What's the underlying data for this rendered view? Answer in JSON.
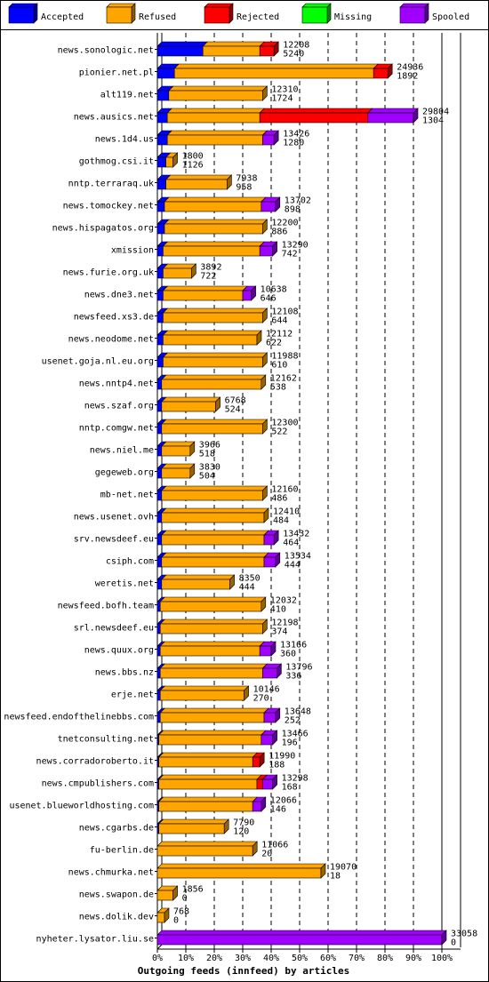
{
  "chart_data": {
    "type": "bar",
    "orientation": "horizontal",
    "stacked": true,
    "percent_stacked": true,
    "title": "Outgoing feeds (innfeed) by articles",
    "xlabel": "Outgoing feeds (innfeed) by articles",
    "xlim": [
      0,
      100
    ],
    "x_ticks": [
      "0%",
      "10%",
      "20%",
      "30%",
      "40%",
      "50%",
      "60%",
      "70%",
      "80%",
      "90%",
      "100%"
    ],
    "grid": true,
    "legend_position": "top",
    "legend": [
      {
        "name": "Accepted",
        "color": "#0000ff"
      },
      {
        "name": "Refused",
        "color": "#ffa500"
      },
      {
        "name": "Rejected",
        "color": "#ff0000"
      },
      {
        "name": "Missing",
        "color": "#00ff00"
      },
      {
        "name": "Spooled",
        "color": "#a000ff"
      }
    ],
    "series_names": [
      "Accepted",
      "Refused",
      "Rejected",
      "Missing",
      "Spooled"
    ],
    "rows": [
      {
        "label": "news.sonologic.net",
        "total": "12208",
        "accepted": "5240",
        "pct": [
          16,
          20,
          5,
          0,
          0
        ]
      },
      {
        "label": "pionier.net.pl",
        "total": "24936",
        "accepted": "1892",
        "pct": [
          6,
          70,
          5,
          0,
          0
        ]
      },
      {
        "label": "alt119.net",
        "total": "12310",
        "accepted": "1724",
        "pct": [
          4,
          33,
          0,
          0,
          0
        ]
      },
      {
        "label": "news.ausics.net",
        "total": "29804",
        "accepted": "1304",
        "pct": [
          3.5,
          32.5,
          38,
          0,
          16
        ]
      },
      {
        "label": "news.1d4.us",
        "total": "13426",
        "accepted": "1280",
        "pct": [
          3.5,
          33.5,
          0,
          0,
          4
        ]
      },
      {
        "label": "gothmog.csi.it",
        "total": "1800",
        "accepted": "1126",
        "pct": [
          3,
          2.5,
          0,
          0,
          0
        ]
      },
      {
        "label": "nntp.terraraq.uk",
        "total": "7938",
        "accepted": "958",
        "pct": [
          3,
          21.5,
          0,
          0,
          0
        ]
      },
      {
        "label": "news.tomockey.net",
        "total": "13702",
        "accepted": "898",
        "pct": [
          2.5,
          34,
          0,
          0,
          5
        ]
      },
      {
        "label": "news.hispagatos.org",
        "total": "12200",
        "accepted": "886",
        "pct": [
          2.5,
          34.5,
          0,
          0,
          0
        ]
      },
      {
        "label": "xmission",
        "total": "13290",
        "accepted": "742",
        "pct": [
          2,
          34,
          0,
          0,
          4.5
        ]
      },
      {
        "label": "news.furie.org.uk",
        "total": "3892",
        "accepted": "722",
        "pct": [
          2,
          10,
          0,
          0,
          0
        ]
      },
      {
        "label": "news.dne3.net",
        "total": "10638",
        "accepted": "646",
        "pct": [
          2,
          28,
          0,
          0,
          3
        ]
      },
      {
        "label": "newsfeed.xs3.de",
        "total": "12108",
        "accepted": "644",
        "pct": [
          2,
          35,
          0,
          0,
          0
        ]
      },
      {
        "label": "news.neodome.net",
        "total": "12112",
        "accepted": "622",
        "pct": [
          2,
          33,
          0,
          0,
          0
        ]
      },
      {
        "label": "usenet.goja.nl.eu.org",
        "total": "11988",
        "accepted": "610",
        "pct": [
          2,
          35,
          0,
          0,
          0
        ]
      },
      {
        "label": "news.nntp4.net",
        "total": "12162",
        "accepted": "538",
        "pct": [
          1.5,
          35,
          0,
          0,
          0
        ]
      },
      {
        "label": "news.szaf.org",
        "total": "6768",
        "accepted": "524",
        "pct": [
          1.5,
          19,
          0,
          0,
          0
        ]
      },
      {
        "label": "nntp.comgw.net",
        "total": "12300",
        "accepted": "522",
        "pct": [
          1.5,
          35.5,
          0,
          0,
          0
        ]
      },
      {
        "label": "news.niel.me",
        "total": "3966",
        "accepted": "518",
        "pct": [
          1.5,
          10,
          0,
          0,
          0
        ]
      },
      {
        "label": "gegeweb.org",
        "total": "3830",
        "accepted": "504",
        "pct": [
          1.5,
          10,
          0,
          0,
          0
        ]
      },
      {
        "label": "mb-net.net",
        "total": "12160",
        "accepted": "486",
        "pct": [
          1.5,
          35.5,
          0,
          0,
          0
        ]
      },
      {
        "label": "news.usenet.ovh",
        "total": "12410",
        "accepted": "484",
        "pct": [
          1.5,
          36,
          0,
          0,
          0
        ]
      },
      {
        "label": "srv.newsdeef.eu",
        "total": "13432",
        "accepted": "464",
        "pct": [
          1.5,
          36,
          0,
          0,
          3.5
        ]
      },
      {
        "label": "csiph.com",
        "total": "13534",
        "accepted": "444",
        "pct": [
          1.5,
          36,
          0,
          0,
          4
        ]
      },
      {
        "label": "weretis.net",
        "total": "8350",
        "accepted": "444",
        "pct": [
          1.5,
          24,
          0,
          0,
          0
        ]
      },
      {
        "label": "newsfeed.bofh.team",
        "total": "12032",
        "accepted": "410",
        "pct": [
          1,
          35.5,
          0,
          0,
          0
        ]
      },
      {
        "label": "srl.newsdeef.eu",
        "total": "12198",
        "accepted": "374",
        "pct": [
          1,
          36,
          0,
          0,
          0
        ]
      },
      {
        "label": "news.quux.org",
        "total": "13166",
        "accepted": "360",
        "pct": [
          1,
          35,
          0,
          0,
          4
        ]
      },
      {
        "label": "news.bbs.nz",
        "total": "13796",
        "accepted": "336",
        "pct": [
          1,
          36,
          0,
          0,
          5
        ]
      },
      {
        "label": "erje.net",
        "total": "10146",
        "accepted": "270",
        "pct": [
          1,
          29.5,
          0,
          0,
          0
        ]
      },
      {
        "label": "newsfeed.endofthelinebbs.com",
        "total": "13648",
        "accepted": "252",
        "pct": [
          1,
          36.5,
          0,
          0,
          4
        ]
      },
      {
        "label": "tnetconsulting.net",
        "total": "13466",
        "accepted": "196",
        "pct": [
          0.5,
          36,
          0,
          0,
          4
        ]
      },
      {
        "label": "news.corradoroberto.it",
        "total": "11990",
        "accepted": "188",
        "pct": [
          0.5,
          33,
          2.5,
          0,
          0
        ]
      },
      {
        "label": "news.cmpublishers.com",
        "total": "13298",
        "accepted": "168",
        "pct": [
          0.5,
          34.5,
          2,
          0,
          3.5
        ]
      },
      {
        "label": "usenet.blueworldhosting.com",
        "total": "12066",
        "accepted": "146",
        "pct": [
          0.5,
          33,
          0,
          0,
          3
        ]
      },
      {
        "label": "news.cgarbs.de",
        "total": "7790",
        "accepted": "120",
        "pct": [
          0.5,
          23,
          0,
          0,
          0
        ]
      },
      {
        "label": "fu-berlin.de",
        "total": "11066",
        "accepted": "20",
        "pct": [
          0,
          33.5,
          0,
          0,
          0
        ]
      },
      {
        "label": "news.chmurka.net",
        "total": "19070",
        "accepted": "18",
        "pct": [
          0,
          57.5,
          0,
          0,
          0
        ]
      },
      {
        "label": "news.swapon.de",
        "total": "1856",
        "accepted": "0",
        "pct": [
          0,
          5.5,
          0,
          0,
          0
        ]
      },
      {
        "label": "news.dolik.dev",
        "total": "768",
        "accepted": "0",
        "pct": [
          0,
          2.5,
          0,
          0,
          0
        ]
      },
      {
        "label": "nyheter.lysator.liu.se",
        "total": "33058",
        "accepted": "0",
        "pct": [
          0,
          0,
          0,
          0,
          100
        ]
      }
    ]
  }
}
